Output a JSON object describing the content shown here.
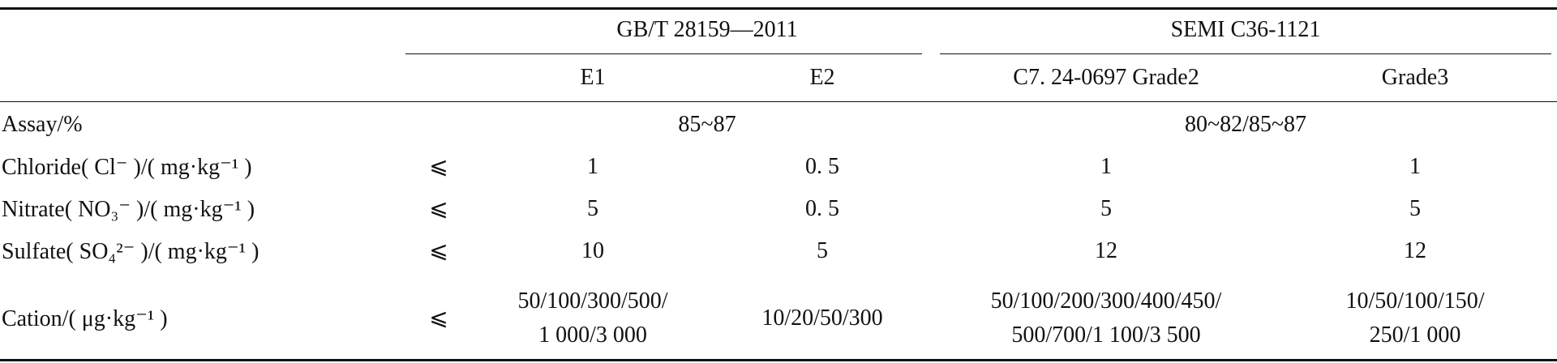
{
  "table": {
    "groups": [
      {
        "title": "GB/T 28159—2011",
        "columns": [
          "E1",
          "E2"
        ]
      },
      {
        "title": "SEMI C36-1121",
        "columns": [
          "C7. 24-0697 Grade2",
          "Grade3"
        ]
      }
    ],
    "rows": [
      {
        "label": "Assay/%",
        "values": [
          "85~87",
          "80~82/85~87"
        ]
      },
      {
        "label": "Chloride( Cl⁻ )/( mg·kg⁻¹ )",
        "symbol": "⩽",
        "values": [
          "1",
          "0. 5",
          "1",
          "1"
        ]
      },
      {
        "label": "Nitrate( NO₃⁻ )/( mg·kg⁻¹ )",
        "symbol": "⩽",
        "values": [
          "5",
          "0. 5",
          "5",
          "5"
        ]
      },
      {
        "label": "Sulfate( SO₄²⁻ )/( mg·kg⁻¹ )",
        "symbol": "⩽",
        "values": [
          "10",
          "5",
          "12",
          "12"
        ]
      },
      {
        "label": "Cation/( μg·kg⁻¹ )",
        "symbol": "⩽",
        "values": [
          "50/100/300/500/\n1 000/3 000",
          "10/20/50/300",
          "50/100/200/300/400/450/\n500/700/1 100/3 500",
          "10/50/100/150/\n250/1 000"
        ]
      }
    ]
  }
}
